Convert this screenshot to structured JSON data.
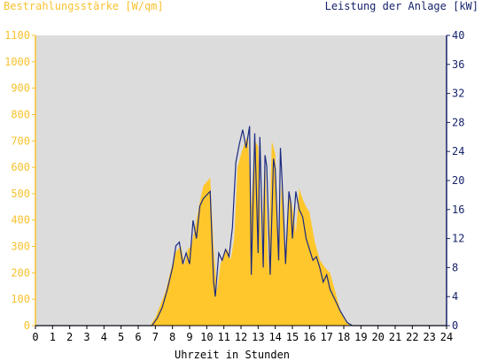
{
  "chart_data": {
    "type": "area",
    "left_axis_title": "Bestrahlungsstärke [W/qm]",
    "right_axis_title": "Leistung der Anlage [kW]",
    "xlabel": "Uhrzeit in Stunden",
    "xlim": [
      0,
      24
    ],
    "left_ylim": [
      0,
      1100
    ],
    "right_ylim": [
      0,
      40
    ],
    "x_ticks": [
      "0",
      "1",
      "2",
      "3",
      "4",
      "5",
      "6",
      "7",
      "8",
      "9",
      "10",
      "11",
      "12",
      "13",
      "14",
      "15",
      "16",
      "17",
      "18",
      "19",
      "20",
      "21",
      "22",
      "23",
      "24"
    ],
    "left_ticks": [
      "0",
      "100",
      "200",
      "300",
      "400",
      "500",
      "600",
      "700",
      "800",
      "900",
      "1000",
      "1100"
    ],
    "right_ticks": [
      "0",
      "4",
      "8",
      "12",
      "16",
      "20",
      "24",
      "28",
      "32",
      "36",
      "40"
    ],
    "grid": false,
    "colors": {
      "irradiance": "#ffc72c",
      "power": "#1c2a80",
      "plot_bg": "#dcdcdc",
      "left_axis": "#f7c22f",
      "right_axis": "#17236b"
    },
    "series": [
      {
        "name": "Bestrahlungsstärke [W/qm]",
        "axis": "left",
        "x": [
          0,
          6.7,
          7.0,
          7.3,
          7.6,
          7.9,
          8.2,
          8.5,
          8.7,
          8.9,
          9.1,
          9.4,
          9.6,
          9.8,
          10.0,
          10.2,
          10.4,
          10.6,
          10.8,
          11.0,
          11.2,
          11.4,
          11.6,
          11.8,
          12.0,
          12.2,
          12.4,
          12.6,
          12.8,
          13.0,
          13.2,
          13.4,
          13.6,
          13.8,
          14.0,
          14.2,
          14.4,
          14.6,
          14.8,
          15.0,
          15.2,
          15.4,
          15.6,
          15.8,
          16.0,
          16.3,
          16.6,
          16.9,
          17.2,
          17.5,
          17.8,
          18.1,
          18.4,
          18.7,
          19.0,
          24
        ],
        "values": [
          0,
          0,
          30,
          80,
          130,
          210,
          280,
          300,
          230,
          290,
          300,
          400,
          470,
          530,
          545,
          560,
          300,
          130,
          230,
          270,
          290,
          250,
          330,
          600,
          650,
          690,
          720,
          450,
          700,
          680,
          300,
          650,
          200,
          700,
          650,
          280,
          580,
          250,
          500,
          450,
          350,
          520,
          480,
          450,
          430,
          320,
          250,
          220,
          200,
          130,
          60,
          15,
          0,
          0,
          0,
          0
        ]
      },
      {
        "name": "Leistung der Anlage [kW]",
        "axis": "right",
        "x": [
          0,
          6.8,
          7.1,
          7.4,
          7.7,
          8.0,
          8.2,
          8.4,
          8.6,
          8.8,
          9.0,
          9.2,
          9.4,
          9.6,
          9.8,
          10.0,
          10.2,
          10.4,
          10.5,
          10.7,
          10.9,
          11.1,
          11.3,
          11.5,
          11.7,
          11.9,
          12.1,
          12.3,
          12.5,
          12.6,
          12.8,
          12.9,
          13.0,
          13.1,
          13.3,
          13.4,
          13.5,
          13.7,
          13.9,
          14.0,
          14.2,
          14.3,
          14.4,
          14.6,
          14.8,
          14.9,
          15.0,
          15.2,
          15.4,
          15.6,
          15.8,
          16.0,
          16.2,
          16.4,
          16.6,
          16.8,
          17.0,
          17.2,
          17.4,
          17.6,
          17.8,
          18.0,
          18.2,
          18.5,
          18.8,
          24
        ],
        "values": [
          0,
          0,
          1,
          2.5,
          5,
          8,
          11,
          11.5,
          8.5,
          10,
          8.5,
          14.5,
          12,
          16.5,
          17.5,
          18,
          18.5,
          6,
          4,
          10,
          9,
          10.5,
          9.5,
          13.5,
          22.5,
          25,
          27,
          24.5,
          27.5,
          7,
          26.5,
          18.5,
          10,
          26,
          8,
          23.5,
          22,
          7,
          23,
          21.5,
          9,
          24.5,
          20,
          8.5,
          18.5,
          17,
          12,
          18.5,
          16,
          15,
          12,
          10.5,
          9,
          9.5,
          8,
          6,
          7,
          5,
          4,
          3,
          2,
          1.2,
          0.4,
          0,
          0,
          0
        ]
      }
    ]
  }
}
